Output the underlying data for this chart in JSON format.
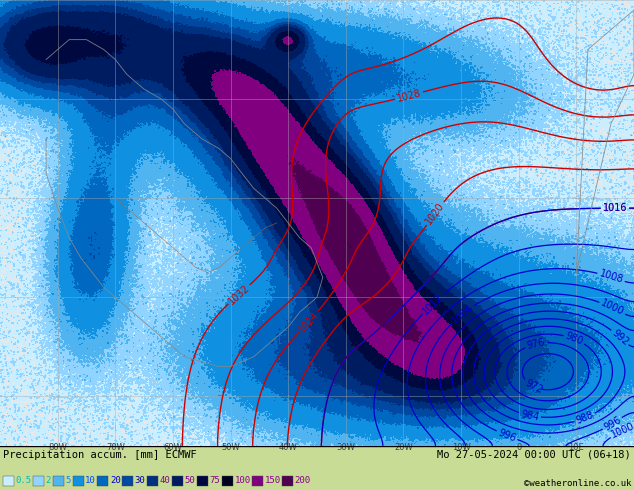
{
  "title_left": "Precipitation accum. [mm] ECMWF",
  "title_right": "Mo 27-05-2024 00:00 UTC (06+18)",
  "credit": "©weatheronline.co.uk",
  "legend_values": [
    "0.5",
    "2",
    "5",
    "10",
    "20",
    "30",
    "40",
    "50",
    "75",
    "100",
    "150",
    "200"
  ],
  "figsize": [
    6.34,
    4.9
  ],
  "dpi": 100,
  "ocean_color": "#e8e8e8",
  "land_color": "#c8dc96",
  "fig_bg": "#c8dc96",
  "contour_red": "#cc0000",
  "contour_blue": "#0000cc",
  "grid_color": "#aaaaaa",
  "precip_levels": [
    0,
    0.5,
    2,
    5,
    10,
    20,
    30,
    40,
    50,
    75,
    100,
    150,
    200,
    300
  ],
  "precip_colors": [
    "#e8e8e8",
    "#c8eeff",
    "#90d4ff",
    "#50b4f0",
    "#1090e0",
    "#0068c0",
    "#0048a0",
    "#003080",
    "#001c60",
    "#000840",
    "#800080",
    "#500050",
    "#280028"
  ],
  "legend_swatch_colors": [
    "#c8eeff",
    "#90d4ff",
    "#50b4f0",
    "#1090e0",
    "#0068c0",
    "#0048a0",
    "#003080",
    "#001c60",
    "#000840",
    "#000020",
    "#800080",
    "#500050"
  ],
  "legend_text_colors": [
    "#00bbbb",
    "#00bbbb",
    "#0088ff",
    "#0044ff",
    "#0000cc",
    "#0000aa",
    "#880088",
    "#880088",
    "#880088",
    "#880088",
    "#880088",
    "#880088"
  ]
}
